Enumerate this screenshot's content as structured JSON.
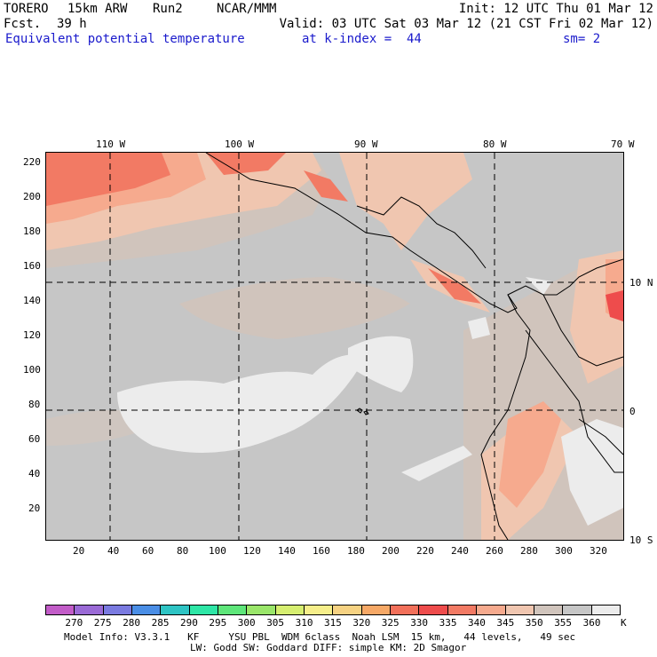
{
  "header": {
    "model": "TORERO",
    "resolution": "15km ARW",
    "run": "Run2",
    "org": "NCAR/MMM",
    "init": "Init: 12 UTC Thu 01 Mar 12",
    "fcst_label": "Fcst.",
    "fcst_value": "39 h",
    "valid": "Valid: 03 UTC Sat 03 Mar 12 (21 CST Fri 02 Mar 12)"
  },
  "field": {
    "title": "Equivalent potential temperature",
    "level": "at k-index =  44",
    "smoothing": "sm= 2"
  },
  "axes": {
    "lon_labels": [
      "110 W",
      "100 W",
      "90 W",
      "80 W",
      "70 W"
    ],
    "lat_labels": [
      "10 N",
      "0",
      "10 S"
    ],
    "y_ticks": [
      "220",
      "200",
      "180",
      "160",
      "140",
      "120",
      "100",
      "80",
      "60",
      "40",
      "20"
    ],
    "x_ticks": [
      "20",
      "40",
      "60",
      "80",
      "100",
      "120",
      "140",
      "160",
      "180",
      "200",
      "220",
      "240",
      "260",
      "280",
      "300",
      "320"
    ]
  },
  "colorbar": {
    "unit": "K",
    "labels": [
      "270",
      "275",
      "280",
      "285",
      "290",
      "295",
      "300",
      "305",
      "310",
      "315",
      "320",
      "325",
      "330",
      "335",
      "340",
      "345",
      "350",
      "355",
      "360"
    ],
    "colors": [
      "#c25cc8",
      "#9a6ad6",
      "#7a7ae0",
      "#4a8ee6",
      "#2ec4c4",
      "#2ee6a6",
      "#5ee67a",
      "#9ae66a",
      "#d6ee70",
      "#f6ee8a",
      "#f6d282",
      "#f6a866",
      "#f2705a",
      "#ee4c4c",
      "#f27a64",
      "#f6aa8e",
      "#f0c6b0",
      "#d0c4bc",
      "#c6c6c6",
      "#ececec"
    ]
  },
  "footer": {
    "line1": "Model Info: V3.3.1   KF     YSU PBL  WDM 6class  Noah LSM  15 km,   44 levels,   49 sec",
    "line2": "LW: Godd SW: Goddard DIFF: simple KM: 2D Smagor"
  }
}
